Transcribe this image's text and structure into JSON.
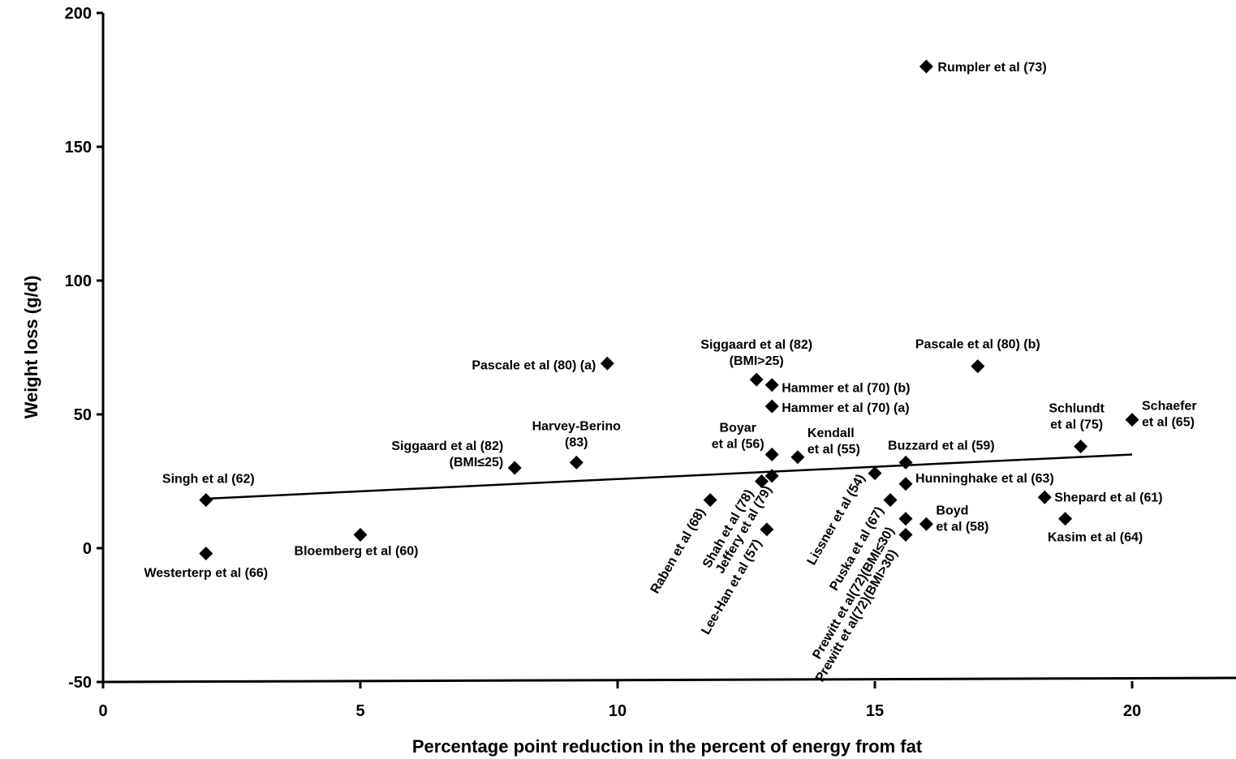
{
  "chart_data": {
    "type": "scatter",
    "title": "",
    "xlabel": "Percentage point reduction in the percent of energy from fat",
    "ylabel": "Weight loss (g/d)",
    "xlim": [
      0,
      22
    ],
    "ylim": [
      -50,
      200
    ],
    "x_ticks": [
      0,
      5,
      10,
      15,
      20
    ],
    "y_ticks": [
      -50,
      0,
      50,
      100,
      150,
      200
    ],
    "grid": false,
    "legend": "none",
    "trendline": {
      "x": [
        2,
        20
      ],
      "y": [
        18.5,
        35
      ]
    },
    "points": [
      {
        "x": 16,
        "y": 180,
        "label": [
          "Rumpler et al (73)"
        ]
      },
      {
        "x": 9.8,
        "y": 69,
        "label": [
          "Pascale et al (80) (a)"
        ]
      },
      {
        "x": 17,
        "y": 68,
        "label": [
          "Pascale et al (80) (b)"
        ]
      },
      {
        "x": 12.7,
        "y": 63,
        "label": [
          "Siggaard et al (82)",
          "(BMI>25)"
        ]
      },
      {
        "x": 13,
        "y": 61,
        "label": [
          "Hammer et al (70) (b)"
        ]
      },
      {
        "x": 13,
        "y": 53,
        "label": [
          "Hammer et al (70) (a)"
        ]
      },
      {
        "x": 20,
        "y": 48,
        "label": [
          "Schaefer",
          "et al (65)"
        ]
      },
      {
        "x": 19,
        "y": 38,
        "label": [
          "Schlundt",
          "et al (75)"
        ]
      },
      {
        "x": 13,
        "y": 35,
        "label": [
          "Boyar",
          "et al (56)"
        ]
      },
      {
        "x": 13.5,
        "y": 34,
        "label": [
          "Kendall",
          "et al (55)"
        ]
      },
      {
        "x": 15.6,
        "y": 32,
        "label": [
          "Buzzard et al (59)"
        ]
      },
      {
        "x": 9.2,
        "y": 32,
        "label": [
          "Harvey-Berino",
          "(83)"
        ]
      },
      {
        "x": 8,
        "y": 30,
        "label": [
          "Siggaard et al (82)",
          "(BMI≤25)"
        ]
      },
      {
        "x": 15,
        "y": 28,
        "label": [
          "Lissner et al (54)"
        ]
      },
      {
        "x": 13,
        "y": 27,
        "label": [
          "Jeffery et al (79)"
        ]
      },
      {
        "x": 12.8,
        "y": 25,
        "label": [
          "Shah et al (78)"
        ]
      },
      {
        "x": 15.6,
        "y": 24,
        "label": [
          "Hunninghake et al (63)"
        ]
      },
      {
        "x": 18.3,
        "y": 19,
        "label": [
          "Shepard et al (61)"
        ]
      },
      {
        "x": 2,
        "y": 18,
        "label": [
          "Singh et al (62)"
        ]
      },
      {
        "x": 11.8,
        "y": 18,
        "label": [
          "Raben et al (68)"
        ]
      },
      {
        "x": 15.3,
        "y": 18,
        "label": [
          "Puska et al (67)"
        ]
      },
      {
        "x": 15.6,
        "y": 11,
        "label": [
          "Prewitt et al(72)(BMI≤30)"
        ]
      },
      {
        "x": 18.7,
        "y": 11,
        "label": [
          "Kasim et al (64)"
        ]
      },
      {
        "x": 16,
        "y": 9,
        "label": [
          "Boyd",
          "et al (58)"
        ]
      },
      {
        "x": 12.9,
        "y": 7,
        "label": [
          "Lee-Han et al (57)"
        ]
      },
      {
        "x": 5,
        "y": 5,
        "label": [
          "Bloemberg et al (60)"
        ]
      },
      {
        "x": 15.6,
        "y": 5,
        "label": [
          "Prewitt et al(72)(BMI>30)"
        ]
      },
      {
        "x": 2,
        "y": -2,
        "label": [
          "Westerterp et al (66)"
        ]
      }
    ]
  }
}
